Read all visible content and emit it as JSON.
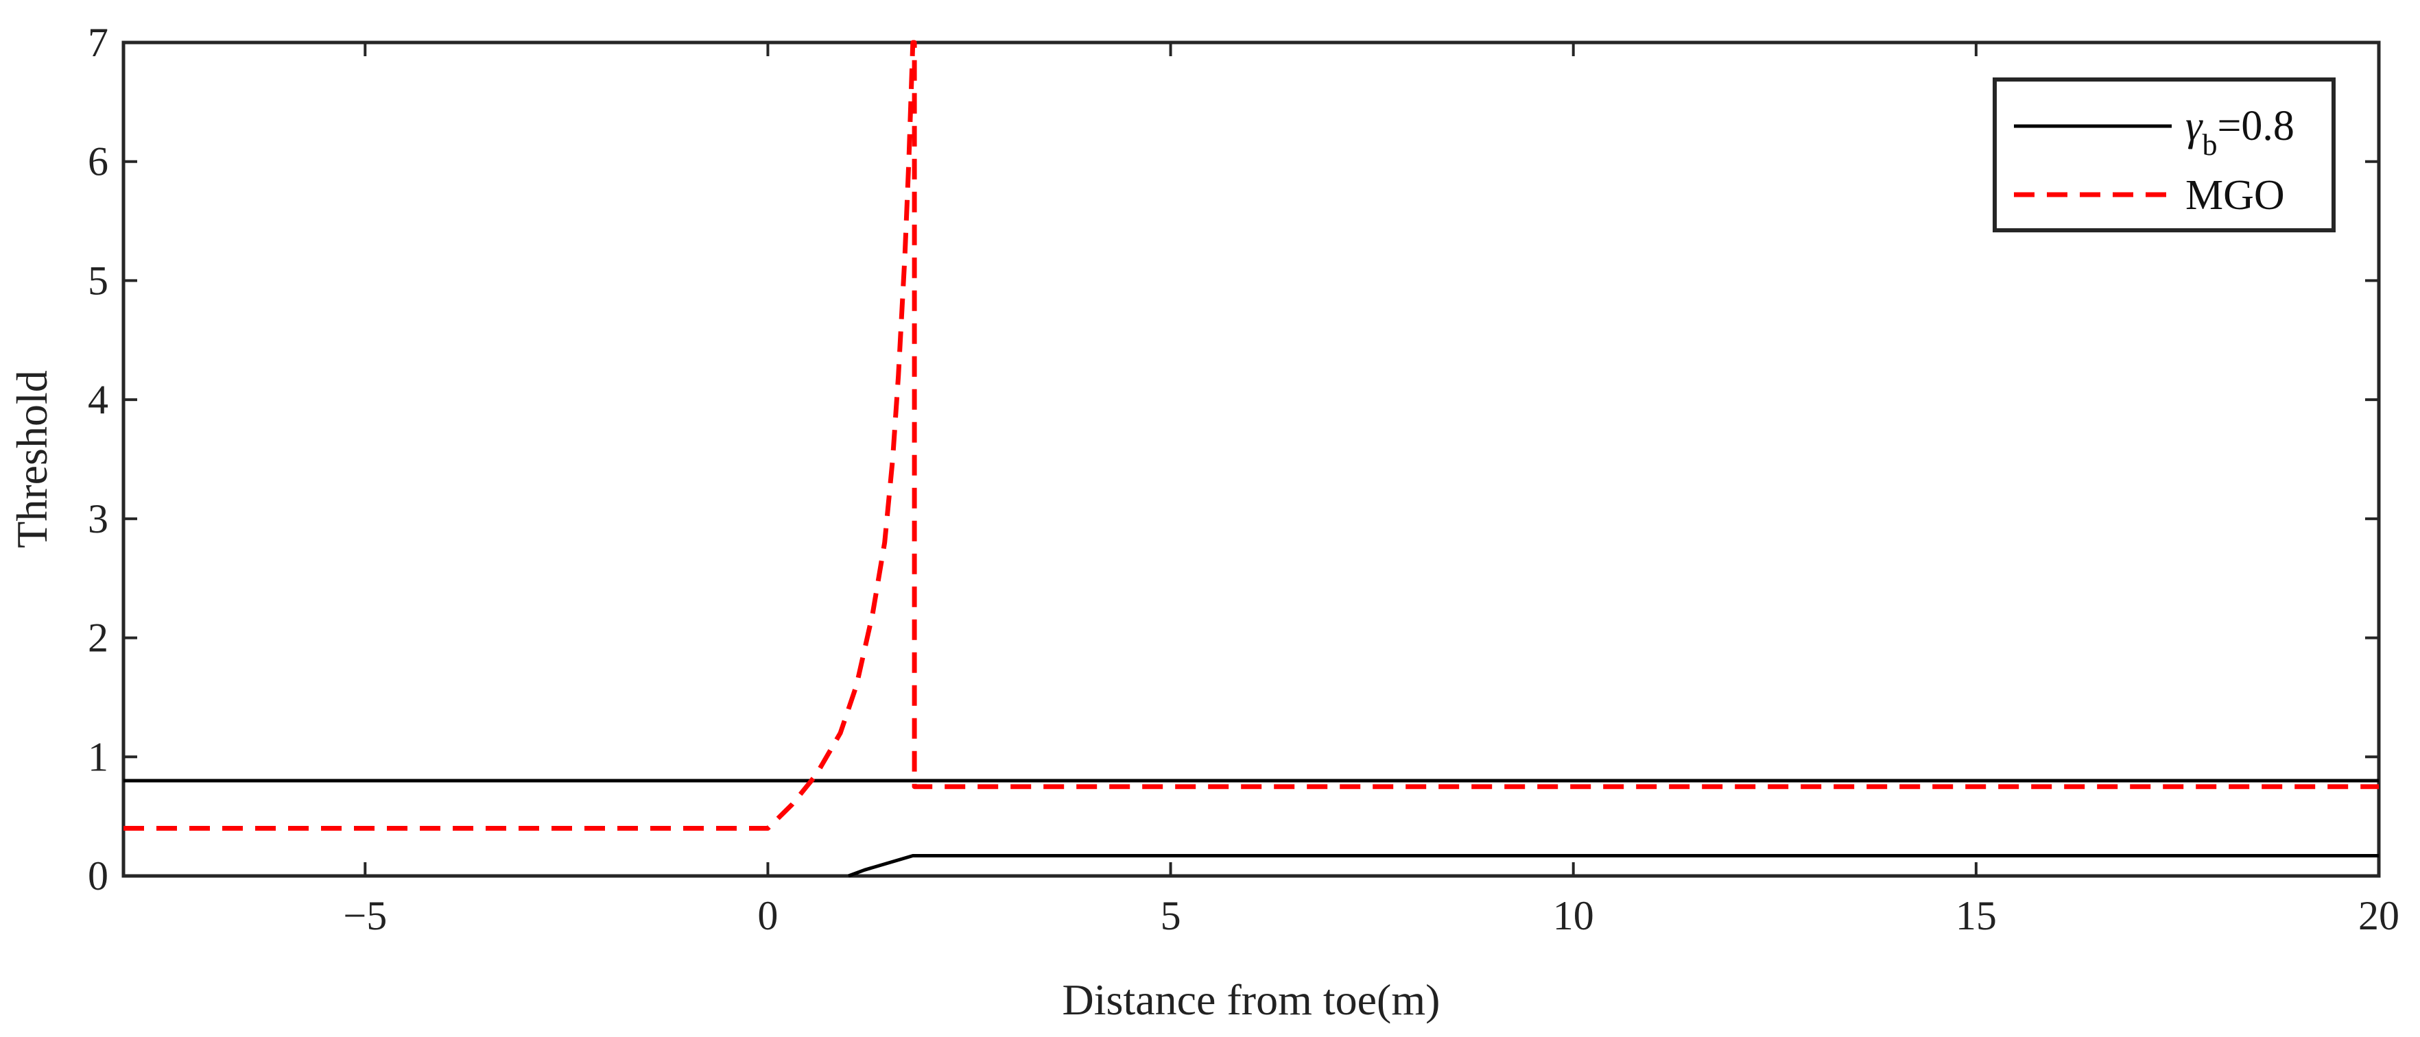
{
  "chart_data": {
    "type": "line",
    "xlabel": "Distance from toe(m)",
    "ylabel": "Threshold",
    "xlim": [
      -8,
      20
    ],
    "ylim": [
      0,
      7
    ],
    "xticks": [
      -5,
      0,
      5,
      10,
      15,
      20
    ],
    "xtick_labels": [
      "−5",
      "0",
      "5",
      "10",
      "15",
      "20"
    ],
    "yticks": [
      0,
      1,
      2,
      3,
      4,
      5,
      6,
      7
    ],
    "ytick_labels": [
      "0",
      "1",
      "2",
      "3",
      "4",
      "5",
      "6",
      "7"
    ],
    "grid": false,
    "legend_position": "top-right",
    "legend_entries": [
      {
        "symbol": "γ",
        "subscript": "b",
        "suffix": "=0.8",
        "color": "#000000",
        "style": "solid"
      },
      {
        "label": "MGO",
        "color": "#ff0000",
        "style": "dashed"
      }
    ],
    "series": [
      {
        "legend_index": 0,
        "color": "#000000",
        "style": "solid",
        "x": [
          -8,
          20
        ],
        "y": [
          0.8,
          0.8
        ]
      },
      {
        "color": "#000000",
        "style": "solid",
        "x": [
          1.0,
          1.2,
          1.8,
          20
        ],
        "y": [
          0.0,
          0.05,
          0.17,
          0.17
        ]
      },
      {
        "legend_index": 1,
        "color": "#ff0000",
        "style": "dashed",
        "x": [
          -8,
          0.0,
          0.3,
          0.6,
          0.9,
          1.1,
          1.3,
          1.45,
          1.55,
          1.62,
          1.7,
          1.75,
          1.8,
          1.82,
          1.82,
          2.0,
          20
        ],
        "y": [
          0.4,
          0.4,
          0.6,
          0.85,
          1.2,
          1.6,
          2.2,
          2.8,
          3.5,
          4.2,
          5.2,
          6.0,
          7.0,
          7.0,
          0.75,
          0.75,
          0.75
        ]
      }
    ]
  }
}
